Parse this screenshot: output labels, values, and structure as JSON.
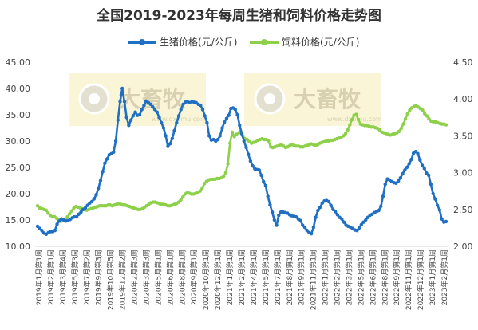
{
  "chart_data": {
    "type": "line",
    "title": "全国2019-2023年每周生猪和饲料价格走势图",
    "legend_position": "top-center",
    "grid": false,
    "y_left": {
      "ticks": [
        "10.00",
        "15.00",
        "20.00",
        "25.00",
        "30.00",
        "35.00",
        "40.00",
        "45.00"
      ],
      "ylim": [
        10,
        45
      ]
    },
    "y_right": {
      "ticks": [
        "2.00",
        "2.50",
        "3.00",
        "3.50",
        "4.00",
        "4.50"
      ],
      "ylim": [
        2.0,
        4.5
      ]
    },
    "x_tick_labels": [
      "2019年1月第1周",
      "2019年2月第1周",
      "2019年3月第4周",
      "2019年5月第3周",
      "2019年7月第2周",
      "2019年9月第3周",
      "2019年10月第5周",
      "2019年12月第2周",
      "2020年2月第3周",
      "2020年3月第3周",
      "2020年5月第1周",
      "2020年6月第1周",
      "2020年8月第1周",
      "2020年9月第1周",
      "2020年10月第1周",
      "2020年12月第1周",
      "2021年1月第1周",
      "2021年2月第1周",
      "2021年4月第1周",
      "2021年5月第1周",
      "2021年7月第1周",
      "2021年8月第1周",
      "2021年9月第1周",
      "2021年11月第1周",
      "2022年1月第1周",
      "2022年2月第1周",
      "2022年3月第1周",
      "2022年5月第1周",
      "2022年6月第1周",
      "2022年8月第1周",
      "2022年9月第1周",
      "2022年11月第1周",
      "2022年12月第1周",
      "2023年1月第1周",
      "2023年2月第1周"
    ],
    "series": [
      {
        "name": "生猪价格(元/公斤)",
        "axis": "left",
        "color": "#1f6fc4",
        "values": [
          13.8,
          13.4,
          13.0,
          12.5,
          12.3,
          12.6,
          12.8,
          12.8,
          13.0,
          14.2,
          14.8,
          15.2,
          15.0,
          14.8,
          14.9,
          15.1,
          15.4,
          15.6,
          15.6,
          16.1,
          16.5,
          17.0,
          17.3,
          17.8,
          18.2,
          18.5,
          19.0,
          19.8,
          21.0,
          22.5,
          24.2,
          25.8,
          26.6,
          27.4,
          27.6,
          27.9,
          30.0,
          34.0,
          37.5,
          40.0,
          37.5,
          34.5,
          33.0,
          34.0,
          34.8,
          35.5,
          34.9,
          35.0,
          36.0,
          36.8,
          37.6,
          37.3,
          37.0,
          36.5,
          36.0,
          35.5,
          34.5,
          33.5,
          32.5,
          31.0,
          29.0,
          29.5,
          30.5,
          32.0,
          33.5,
          34.8,
          36.0,
          37.0,
          37.4,
          37.5,
          37.3,
          37.5,
          37.4,
          37.3,
          37.0,
          36.8,
          36.0,
          34.8,
          33.5,
          31.0,
          30.2,
          30.3,
          30.0,
          30.3,
          31.0,
          32.5,
          33.6,
          34.3,
          34.9,
          36.2,
          36.3,
          36.0,
          35.0,
          33.0,
          31.4,
          30.0,
          28.8,
          27.5,
          26.2,
          25.3,
          24.7,
          24.6,
          24.5,
          23.5,
          22.3,
          21.5,
          19.5,
          17.9,
          16.5,
          15.0,
          14.0,
          15.9,
          16.5,
          16.5,
          16.4,
          16.3,
          16.0,
          15.8,
          15.7,
          15.6,
          15.2,
          14.9,
          14.0,
          13.6,
          13.0,
          12.6,
          12.4,
          13.6,
          15.5,
          16.8,
          17.4,
          18.2,
          18.6,
          18.7,
          18.5,
          17.8,
          17.0,
          16.6,
          16.0,
          15.5,
          15.2,
          14.6,
          14.0,
          13.8,
          13.6,
          13.4,
          13.1,
          13.0,
          13.5,
          14.1,
          14.6,
          15.0,
          15.5,
          15.9,
          16.1,
          16.4,
          16.6,
          16.8,
          17.6,
          19.5,
          21.8,
          22.8,
          22.6,
          22.3,
          22.1,
          22.0,
          22.4,
          23.0,
          23.8,
          24.5,
          25.0,
          25.7,
          26.5,
          27.7,
          28.0,
          27.6,
          26.4,
          25.4,
          24.8,
          23.9,
          23.5,
          21.8,
          20.0,
          19.0,
          17.8,
          16.9,
          15.2,
          14.6,
          14.7
        ]
      },
      {
        "name": "饲料价格(元/公斤)",
        "axis": "right",
        "color": "#8dd04a",
        "values": [
          2.55,
          2.52,
          2.51,
          2.5,
          2.49,
          2.45,
          2.42,
          2.4,
          2.4,
          2.38,
          2.36,
          2.34,
          2.35,
          2.37,
          2.4,
          2.44,
          2.48,
          2.52,
          2.54,
          2.53,
          2.52,
          2.51,
          2.5,
          2.49,
          2.5,
          2.51,
          2.52,
          2.53,
          2.54,
          2.55,
          2.55,
          2.55,
          2.55,
          2.56,
          2.56,
          2.55,
          2.56,
          2.57,
          2.58,
          2.57,
          2.56,
          2.56,
          2.55,
          2.54,
          2.53,
          2.52,
          2.51,
          2.5,
          2.5,
          2.51,
          2.53,
          2.55,
          2.57,
          2.59,
          2.6,
          2.6,
          2.59,
          2.58,
          2.57,
          2.57,
          2.56,
          2.55,
          2.55,
          2.56,
          2.57,
          2.58,
          2.6,
          2.63,
          2.67,
          2.71,
          2.73,
          2.72,
          2.71,
          2.71,
          2.72,
          2.73,
          2.75,
          2.79,
          2.85,
          2.88,
          2.9,
          2.91,
          2.91,
          2.91,
          2.92,
          2.92,
          2.93,
          2.95,
          3.0,
          3.12,
          3.4,
          3.55,
          3.49,
          3.52,
          3.54,
          3.56,
          3.5,
          3.46,
          3.45,
          3.42,
          3.4,
          3.41,
          3.42,
          3.44,
          3.45,
          3.46,
          3.45,
          3.45,
          3.43,
          3.35,
          3.34,
          3.35,
          3.36,
          3.37,
          3.38,
          3.36,
          3.34,
          3.35,
          3.37,
          3.38,
          3.37,
          3.36,
          3.36,
          3.35,
          3.35,
          3.36,
          3.37,
          3.38,
          3.39,
          3.38,
          3.37,
          3.38,
          3.4,
          3.41,
          3.42,
          3.43,
          3.43,
          3.44,
          3.44,
          3.45,
          3.46,
          3.47,
          3.48,
          3.5,
          3.53,
          3.58,
          3.65,
          3.72,
          3.78,
          3.79,
          3.72,
          3.66,
          3.65,
          3.64,
          3.64,
          3.63,
          3.62,
          3.62,
          3.61,
          3.6,
          3.58,
          3.55,
          3.54,
          3.53,
          3.52,
          3.51,
          3.52,
          3.53,
          3.54,
          3.56,
          3.6,
          3.66,
          3.73,
          3.8,
          3.85,
          3.88,
          3.9,
          3.91,
          3.89,
          3.87,
          3.85,
          3.8,
          3.77,
          3.73,
          3.7,
          3.69,
          3.69,
          3.68,
          3.67,
          3.66,
          3.66,
          3.65
        ]
      }
    ]
  },
  "watermark": {
    "brand": "大畜牧",
    "url": "www.dxumu.com"
  }
}
